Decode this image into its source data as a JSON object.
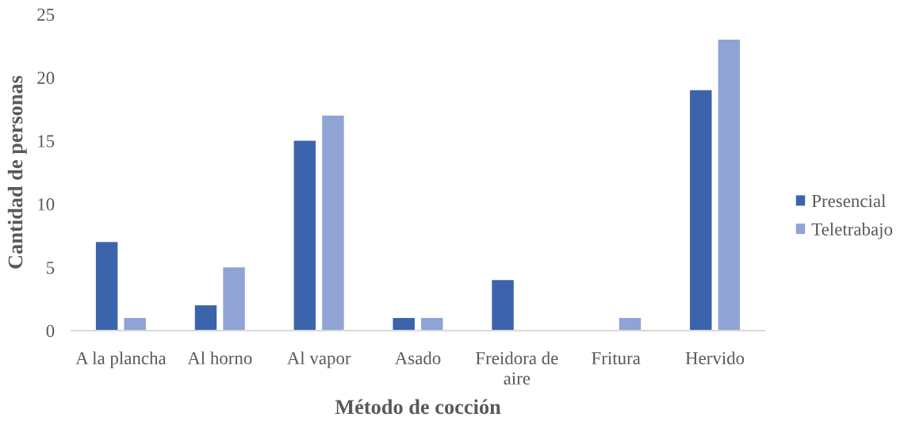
{
  "chart_data": {
    "type": "bar",
    "xlabel": "Método de cocción",
    "ylabel": "Cantidad de personas",
    "categories": [
      "A la plancha",
      "Al horno",
      "Al vapor",
      "Asado",
      "Freidora de aire",
      "Fritura",
      "Hervido"
    ],
    "series": [
      {
        "name": "Presencial",
        "color": "#3c64ac",
        "values": [
          7,
          2,
          15,
          1,
          4,
          0,
          19
        ]
      },
      {
        "name": "Teletrabajo",
        "color": "#8fa3d4",
        "values": [
          1,
          5,
          17,
          1,
          0,
          1,
          23
        ]
      }
    ],
    "ylim": [
      0,
      25
    ],
    "yticks": [
      0,
      5,
      10,
      15,
      20,
      25
    ],
    "grid": false,
    "legend": "right"
  }
}
